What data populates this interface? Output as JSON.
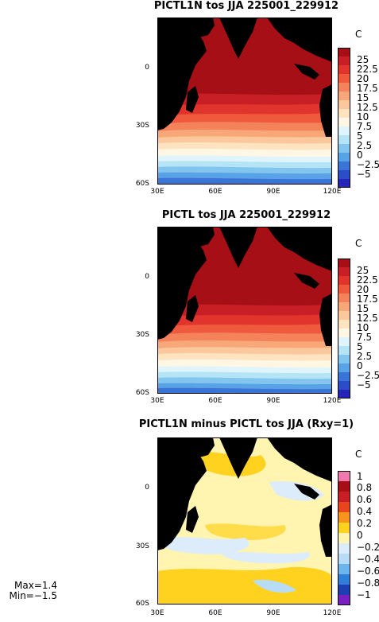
{
  "panels": [
    {
      "title": "PICTL1N tos JJA 225001_229912",
      "unit": "C",
      "colorbar_labels": [
        "25",
        "22.5",
        "20",
        "17.5",
        "15",
        "12.5",
        "10",
        "7.5",
        "5",
        "2.5",
        "0",
        "−2.5",
        "−5"
      ],
      "colorbar_colors": [
        "#a50f15",
        "#c81e26",
        "#e0342c",
        "#ef5a3c",
        "#f4825a",
        "#f8a878",
        "#fbc79c",
        "#fde3c0",
        "#fff7e4",
        "#dff4fb",
        "#b4e4f6",
        "#82c6f0",
        "#58a2e6",
        "#3a74d6",
        "#2c4dc8",
        "#2526b8"
      ],
      "yticks": [
        "0",
        "30S",
        "60S"
      ],
      "xticks": [
        "30E",
        "60E",
        "90E",
        "120E"
      ]
    },
    {
      "title": "PICTL tos JJA 225001_229912",
      "unit": "C",
      "colorbar_labels": [
        "25",
        "22.5",
        "20",
        "17.5",
        "15",
        "12.5",
        "10",
        "7.5",
        "5",
        "2.5",
        "0",
        "−2.5",
        "−5"
      ],
      "colorbar_colors": [
        "#a50f15",
        "#c81e26",
        "#e0342c",
        "#ef5a3c",
        "#f4825a",
        "#f8a878",
        "#fbc79c",
        "#fde3c0",
        "#fff7e4",
        "#dff4fb",
        "#b4e4f6",
        "#82c6f0",
        "#58a2e6",
        "#3a74d6",
        "#2c4dc8",
        "#2526b8"
      ],
      "yticks": [
        "0",
        "30S",
        "60S"
      ],
      "xticks": [
        "30E",
        "60E",
        "90E",
        "120E"
      ]
    },
    {
      "title": "PICTL1N minus PICTL tos JJA (Rxy=1)",
      "unit": "C",
      "colorbar_labels": [
        "1",
        "0.8",
        "0.6",
        "0.4",
        "0.2",
        "0",
        "−0.2",
        "−0.4",
        "−0.6",
        "−0.8",
        "−1"
      ],
      "colorbar_colors": [
        "#f07ab0",
        "#a50f15",
        "#c81e26",
        "#e8451f",
        "#f7941d",
        "#ffd21f",
        "#fff5b0",
        "#dcecfa",
        "#b8dcf5",
        "#6cb4ec",
        "#2f7fd8",
        "#1d3fb0",
        "#7a1fc0"
      ],
      "yticks": [
        "0",
        "30S",
        "60S"
      ],
      "xticks": [
        "30E",
        "60E",
        "90E",
        "120E"
      ],
      "stats": {
        "max": "Max=1.4",
        "min": "Min=−1.5"
      }
    }
  ],
  "chart_data": [
    {
      "type": "heatmap",
      "title": "PICTL1N tos JJA 225001_229912",
      "variable": "tos",
      "season": "JJA",
      "units": "C",
      "x_range": [
        "30E",
        "120E"
      ],
      "y_range": [
        "60S",
        "20N"
      ],
      "color_levels": [
        -5,
        -2.5,
        0,
        2.5,
        5,
        7.5,
        10,
        12.5,
        15,
        17.5,
        20,
        22.5,
        25
      ]
    },
    {
      "type": "heatmap",
      "title": "PICTL tos JJA 225001_229912",
      "variable": "tos",
      "season": "JJA",
      "units": "C",
      "x_range": [
        "30E",
        "120E"
      ],
      "y_range": [
        "60S",
        "20N"
      ],
      "color_levels": [
        -5,
        -2.5,
        0,
        2.5,
        5,
        7.5,
        10,
        12.5,
        15,
        17.5,
        20,
        22.5,
        25
      ]
    },
    {
      "type": "heatmap",
      "title": "PICTL1N minus PICTL tos JJA (Rxy=1)",
      "variable": "tos",
      "season": "JJA",
      "units": "C",
      "x_range": [
        "30E",
        "120E"
      ],
      "y_range": [
        "60S",
        "20N"
      ],
      "color_levels": [
        -1,
        -0.8,
        -0.6,
        -0.4,
        -0.2,
        0,
        0.2,
        0.4,
        0.6,
        0.8,
        1
      ],
      "max": 1.4,
      "min": -1.5
    }
  ]
}
